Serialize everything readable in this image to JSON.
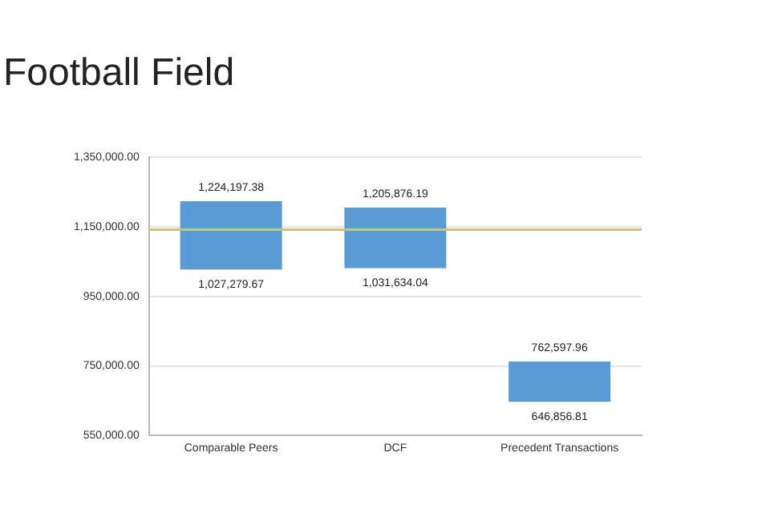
{
  "chart_data": {
    "type": "bar",
    "title": "Football Field",
    "categories": [
      "Comparable Peers",
      "DCF",
      "Precedent Transactions"
    ],
    "base": [
      1027279.67,
      1031634.04,
      646856.81
    ],
    "values": [
      196917.71,
      174242.15,
      115741.15
    ],
    "color": "#5b9bd5",
    "ylim": [
      550000,
      1350000
    ],
    "yticks": [
      {
        "value": 550000,
        "label": "550,000.00"
      },
      {
        "value": 750000,
        "label": "750,000.00"
      },
      {
        "value": 950000,
        "label": "950,000.00"
      },
      {
        "value": 1150000,
        "label": "1,150,000.00"
      },
      {
        "value": 1350000,
        "label": "1,350,000.00"
      }
    ],
    "grid": "y",
    "legend": false,
    "ref_lines": [
      {
        "axis": "y",
        "value": 1142000,
        "color": "#d6c84a"
      }
    ],
    "annotations": [
      {
        "text": "1,224,197.38",
        "x": "Comparable Peers",
        "y": 1224197.38
      },
      {
        "text": "1,027,279.67",
        "x": "Comparable Peers",
        "y": 1027279.67
      },
      {
        "text": "1,205,876.19",
        "x": "DCF",
        "y": 1205876.19
      },
      {
        "text": "1,031,634.04",
        "x": "DCF",
        "y": 1031634.04
      },
      {
        "text": "762,597.96",
        "x": "Precedent Transactions",
        "y": 762597.96
      },
      {
        "text": "646,856.81",
        "x": "Precedent Transactions",
        "y": 646856.81
      }
    ]
  }
}
